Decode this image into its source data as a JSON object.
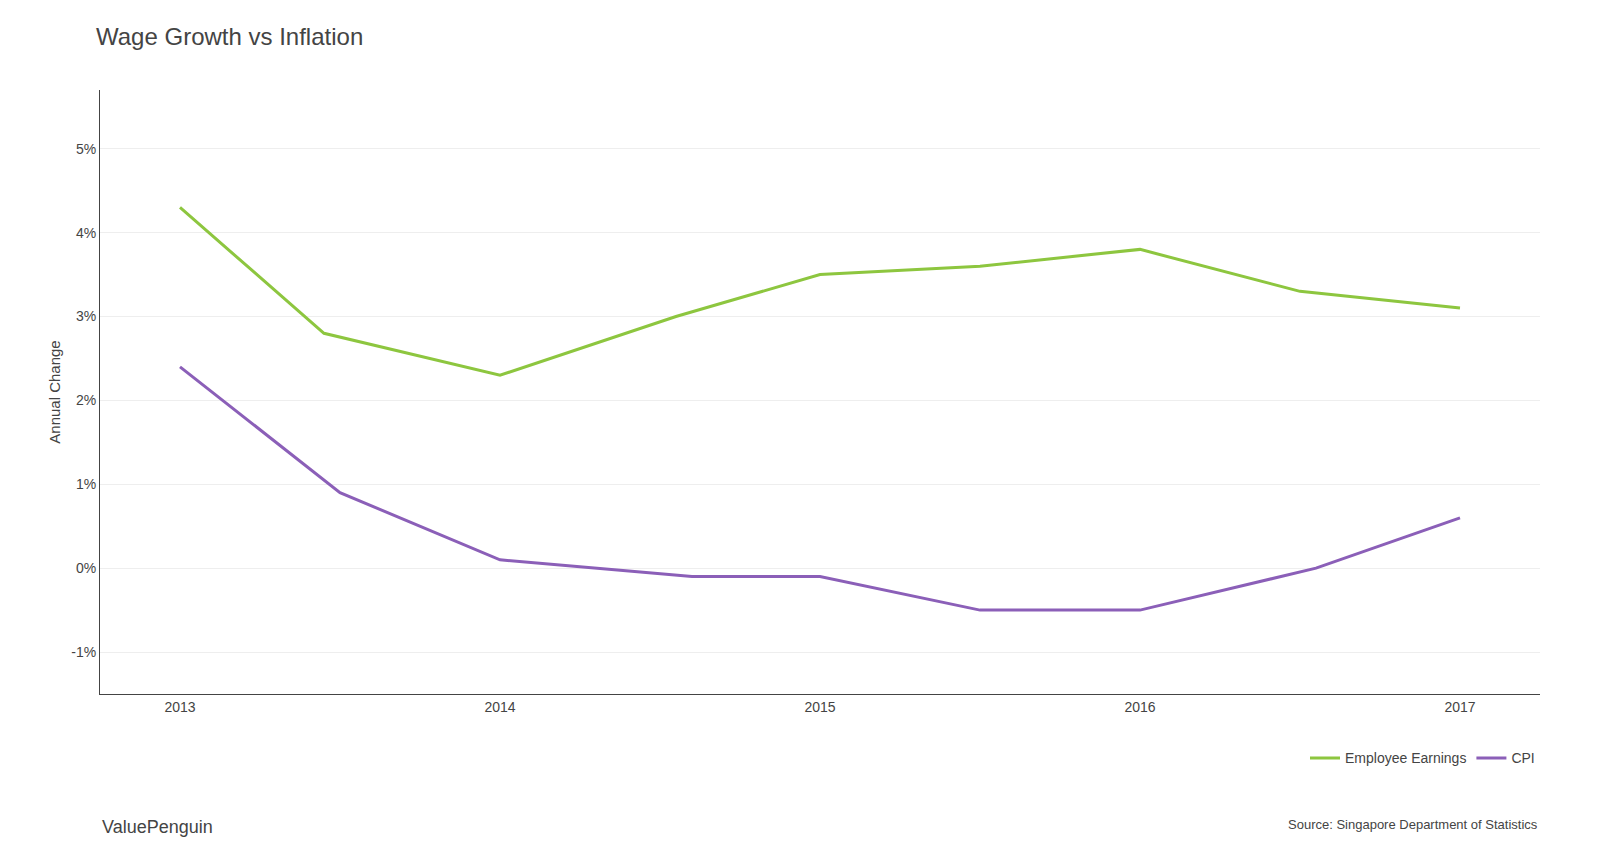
{
  "chart_data": {
    "type": "line",
    "title": "Wage Growth vs Inflation",
    "ylabel": "Annual Change",
    "series": [
      {
        "name": "Employee Earnings",
        "color": "#8dc63f",
        "x": [
          2013,
          2013.45,
          2014,
          2014.55,
          2015,
          2015.5,
          2016,
          2016.5,
          2017
        ],
        "values": [
          0.043,
          0.028,
          0.023,
          0.03,
          0.035,
          0.036,
          0.038,
          0.033,
          0.031
        ]
      },
      {
        "name": "CPI",
        "color": "#8b5fb8",
        "x": [
          2013,
          2013.5,
          2014,
          2014.6,
          2015,
          2015.5,
          2016,
          2016.55,
          2017
        ],
        "values": [
          0.024,
          0.009,
          0.001,
          -0.001,
          -0.001,
          -0.005,
          -0.005,
          0.0,
          0.006
        ]
      }
    ],
    "xlim": [
      2012.75,
      2017.25
    ],
    "xticks": [
      2013,
      2014,
      2015,
      2016,
      2017
    ],
    "ylim": [
      -0.015,
      0.057
    ],
    "yticks": [
      {
        "value": -0.01,
        "label": "-1%"
      },
      {
        "value": 0.0,
        "label": "0%"
      },
      {
        "value": 0.01,
        "label": "1%"
      },
      {
        "value": 0.02,
        "label": "2%"
      },
      {
        "value": 0.03,
        "label": "3%"
      },
      {
        "value": 0.04,
        "label": "4%"
      },
      {
        "value": 0.05,
        "label": "5%"
      }
    ],
    "grid": "y",
    "legend": "bottom",
    "annotations": [
      "ValuePenguin",
      "Source: Singapore Department of Statistics"
    ]
  }
}
